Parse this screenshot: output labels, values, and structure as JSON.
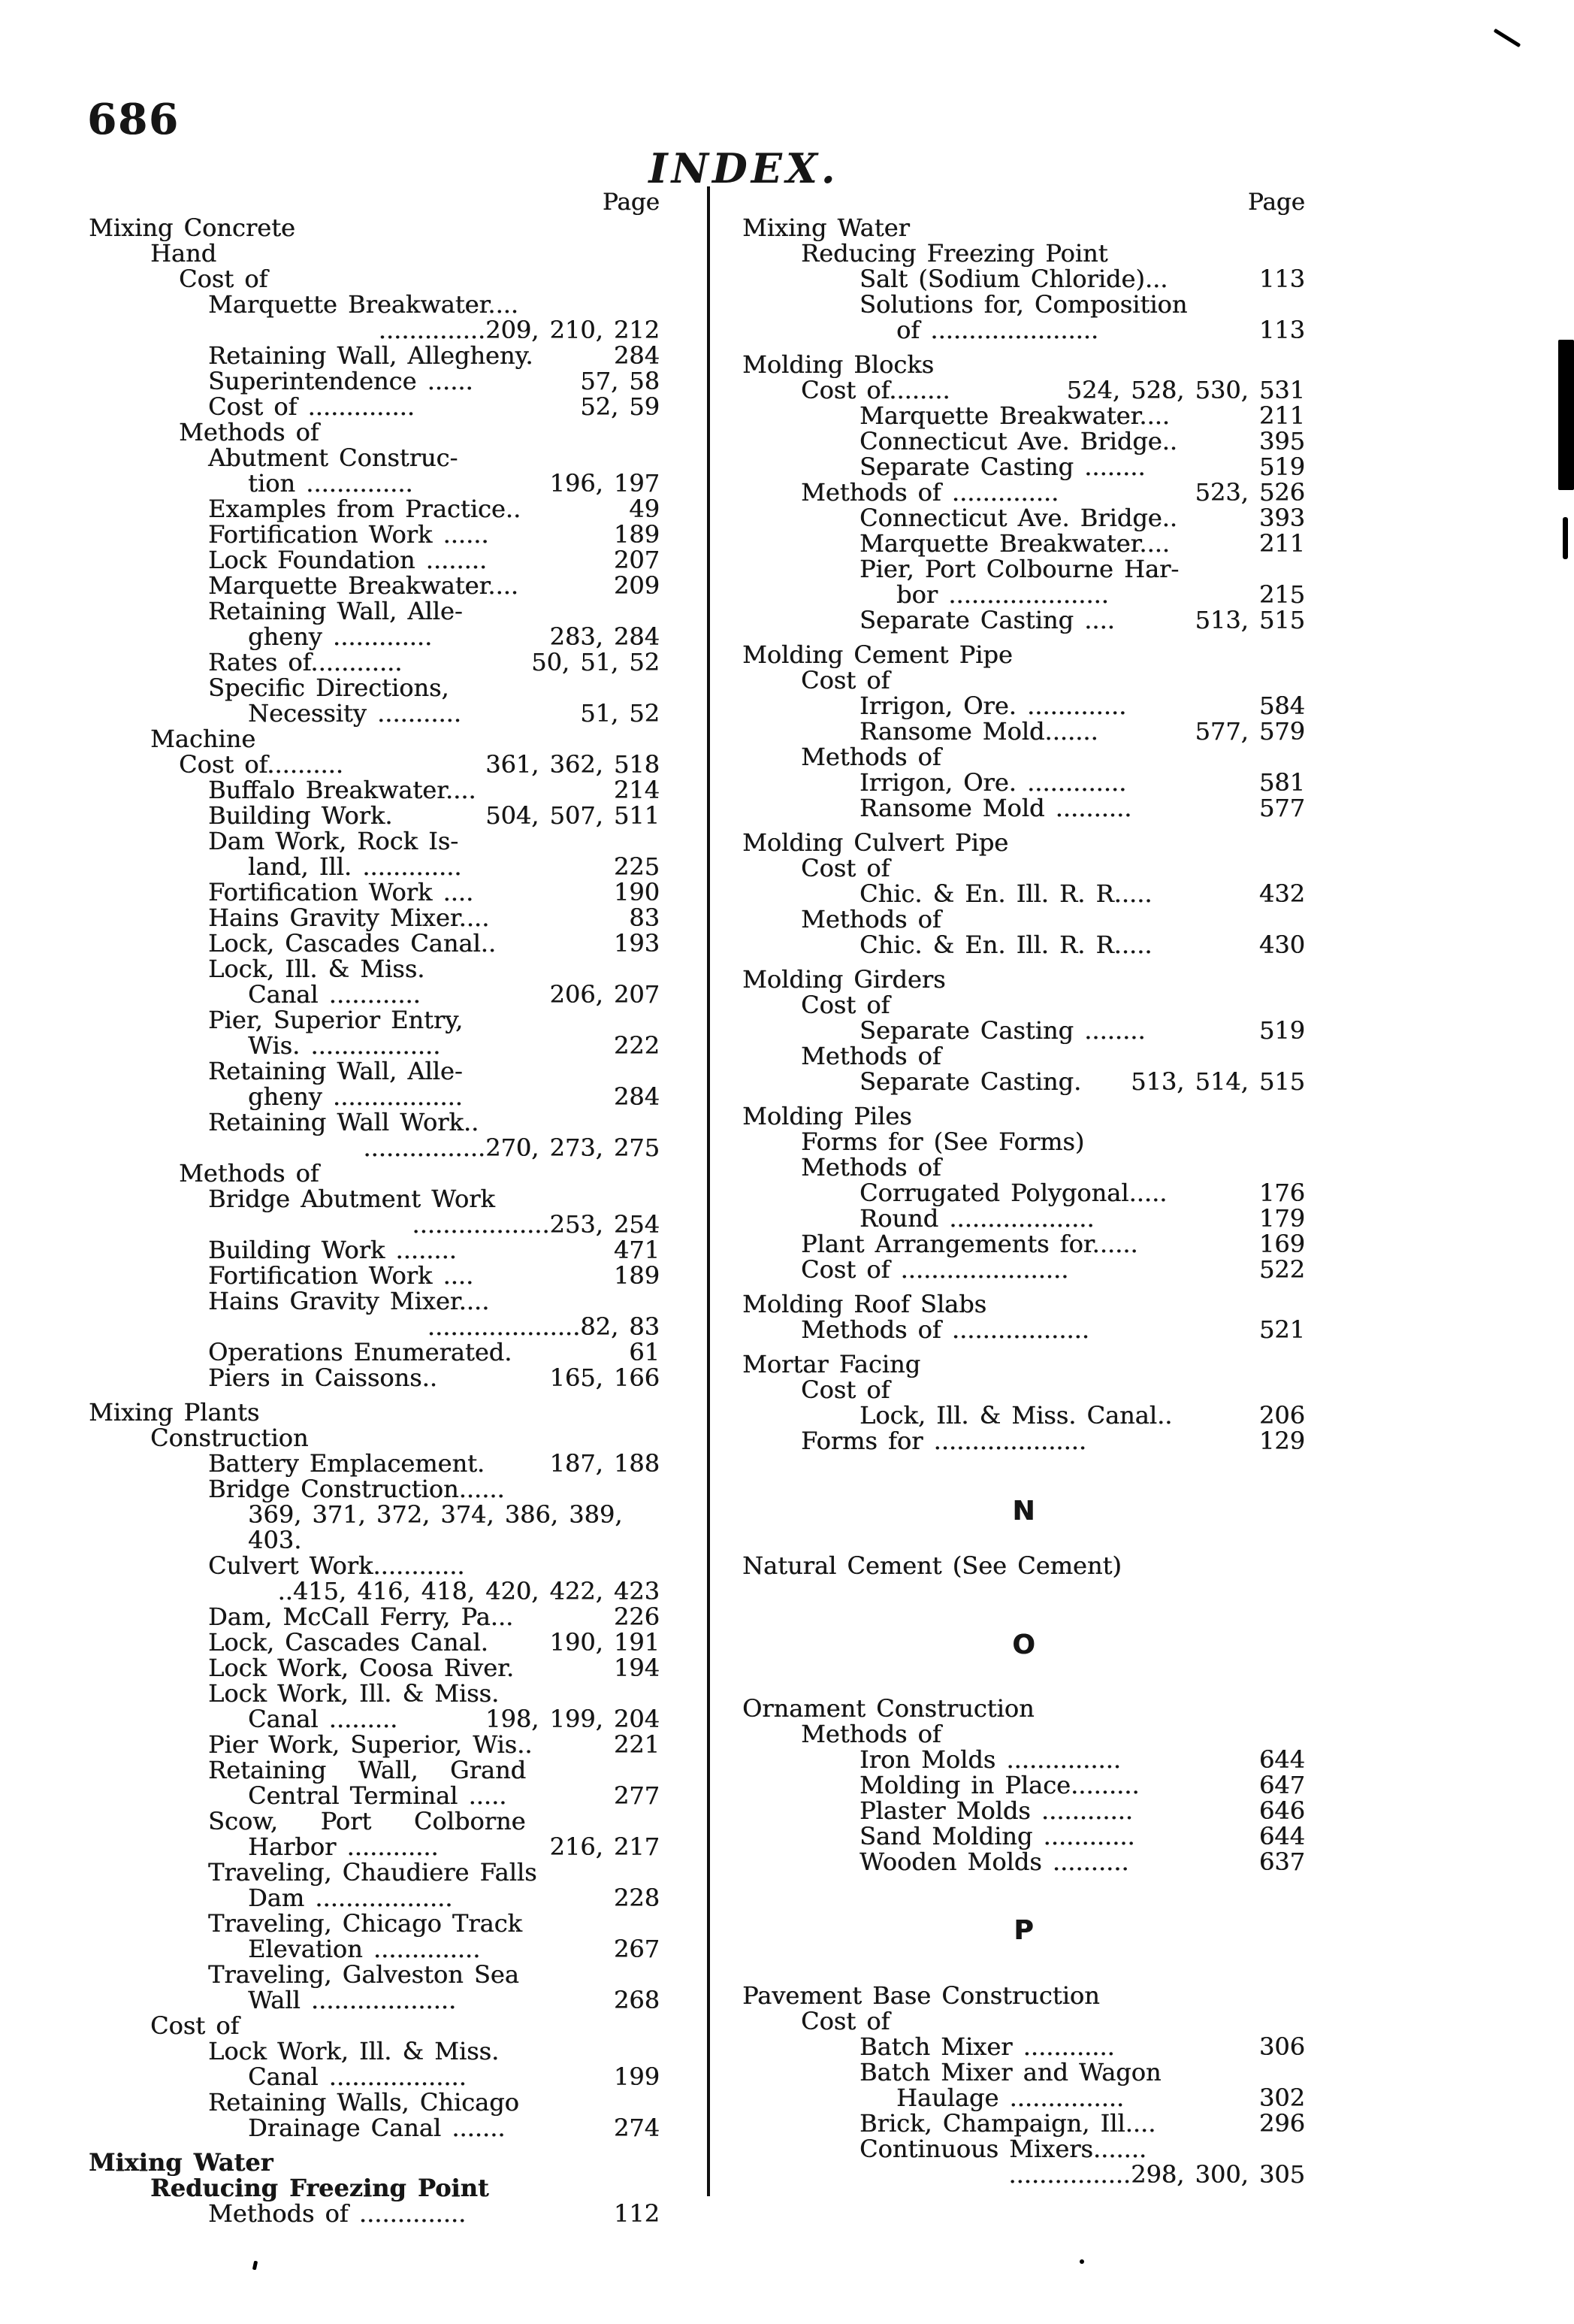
{
  "page": {
    "folio": "686",
    "title": "INDEX."
  },
  "colors": {
    "ink": "#161616",
    "paper": "#ffffff"
  },
  "left_column": {
    "page_label": "Page",
    "lines": [
      {
        "t": "Mixing Concrete",
        "l": 0
      },
      {
        "t": "Hand",
        "l": 1
      },
      {
        "t": "Cost of",
        "l": 2
      },
      {
        "t": "Marquette Breakwater....",
        "l": 3
      },
      {
        "n": "..............209, 210, 212",
        "l": 4
      },
      {
        "t": "Retaining Wall, Allegheny.",
        "n": "284",
        "l": 3
      },
      {
        "t": "Superintendence ......",
        "n": "57, 58",
        "l": 3
      },
      {
        "t": "Cost of ..............",
        "n": "52, 59",
        "l": 3
      },
      {
        "t": "Methods of",
        "l": 2
      },
      {
        "t": "Abutment Construc-",
        "l": 3
      },
      {
        "t": "tion ..............",
        "n": "196, 197",
        "l": 4
      },
      {
        "t": "Examples from Practice..",
        "n": "49",
        "l": 3
      },
      {
        "t": "Fortification Work ......",
        "n": "189",
        "l": 3
      },
      {
        "t": "Lock Foundation ........",
        "n": "207",
        "l": 3
      },
      {
        "t": "Marquette Breakwater....",
        "n": "209",
        "l": 3
      },
      {
        "t": "Retaining Wall, Alle-",
        "l": 3
      },
      {
        "t": "gheny .............",
        "n": "283, 284",
        "l": 4
      },
      {
        "t": "Rates of............",
        "n": "50, 51, 52",
        "l": 3
      },
      {
        "t": "Specific Directions,",
        "l": 3
      },
      {
        "t": "Necessity ...........",
        "n": "51, 52",
        "l": 4
      },
      {
        "t": "Machine",
        "l": 1
      },
      {
        "t": "Cost of..........",
        "n": "361, 362, 518",
        "l": 2
      },
      {
        "t": "Buffalo Breakwater....",
        "n": "214",
        "l": 3
      },
      {
        "t": "Building Work.",
        "n": "504, 507, 511",
        "l": 3
      },
      {
        "t": "Dam Work, Rock Is-",
        "l": 3
      },
      {
        "t": "land, Ill. .............",
        "n": "225",
        "l": 4
      },
      {
        "t": "Fortification Work ....",
        "n": "190",
        "l": 3
      },
      {
        "t": "Hains Gravity Mixer....",
        "n": "83",
        "l": 3
      },
      {
        "t": "Lock, Cascades Canal..",
        "n": "193",
        "l": 3
      },
      {
        "t": "Lock, Ill. & Miss.",
        "l": 3
      },
      {
        "t": "Canal ............",
        "n": "206, 207",
        "l": 4
      },
      {
        "t": "Pier, Superior Entry,",
        "l": 3
      },
      {
        "t": "Wis. .................",
        "n": "222",
        "l": 4
      },
      {
        "t": "Retaining Wall, Alle-",
        "l": 3
      },
      {
        "t": "gheny .................",
        "n": "284",
        "l": 4
      },
      {
        "t": "Retaining Wall Work..",
        "l": 3
      },
      {
        "n": "................270, 273, 275",
        "l": 4
      },
      {
        "t": "Methods of",
        "l": 2
      },
      {
        "t": "Bridge Abutment Work",
        "l": 3
      },
      {
        "n": "..................253, 254",
        "l": 4
      },
      {
        "t": "Building Work ........",
        "n": "471",
        "l": 3
      },
      {
        "t": "Fortification Work ....",
        "n": "189",
        "l": 3
      },
      {
        "t": "Hains Gravity Mixer....",
        "l": 3
      },
      {
        "n": "....................82, 83",
        "l": 4
      },
      {
        "t": "Operations Enumerated.",
        "n": "61",
        "l": 3
      },
      {
        "t": "Piers in Caissons..",
        "n": "165, 166",
        "l": 3
      },
      {
        "t": "Mixing Plants",
        "l": 0,
        "g": 12
      },
      {
        "t": "Construction",
        "l": 1
      },
      {
        "t": "Battery Emplacement.",
        "n": "187, 188",
        "l": 3
      },
      {
        "t": "Bridge Construction......",
        "l": 3
      },
      {
        "t": "369, 371, 372, 374, 386, 389,",
        "l": 4
      },
      {
        "t": "403.",
        "l": 4
      },
      {
        "t": "Culvert Work............",
        "l": 3
      },
      {
        "n": "..415, 416, 418, 420, 422, 423",
        "l": 4
      },
      {
        "t": "Dam, McCall Ferry, Pa...",
        "n": "226",
        "l": 3
      },
      {
        "t": "Lock, Cascades Canal.",
        "n": "190, 191",
        "l": 3
      },
      {
        "t": "Lock Work, Coosa River.",
        "n": "194",
        "l": 3
      },
      {
        "t": "Lock Work, Ill. & Miss.",
        "l": 3
      },
      {
        "t": "Canal .........",
        "n": "198, 199, 204",
        "l": 4
      },
      {
        "t": "Pier Work, Superior, Wis..",
        "n": "221",
        "l": 3
      },
      {
        "t": "Retaining   Wall,   Grand",
        "l": 3
      },
      {
        "t": "Central Terminal .....",
        "n": "277",
        "l": 4
      },
      {
        "t": "Scow,    Port    Colborne",
        "l": 3
      },
      {
        "t": "Harbor ............",
        "n": "216, 217",
        "l": 4
      },
      {
        "t": "Traveling, Chaudiere Falls",
        "l": 3
      },
      {
        "t": "Dam ..................",
        "n": "228",
        "l": 4
      },
      {
        "t": "Traveling, Chicago Track",
        "l": 3
      },
      {
        "t": "Elevation ..............",
        "n": "267",
        "l": 4
      },
      {
        "t": "Traveling, Galveston Sea",
        "l": 3
      },
      {
        "t": "Wall ...................",
        "n": "268",
        "l": 4
      },
      {
        "t": "Cost of",
        "l": 1
      },
      {
        "t": "Lock Work, Ill. & Miss.",
        "l": 3
      },
      {
        "t": "Canal ..................",
        "n": "199",
        "l": 4
      },
      {
        "t": "Retaining Walls, Chicago",
        "l": 3
      },
      {
        "t": "Drainage Canal .......",
        "n": "274",
        "l": 4
      },
      {
        "t": "Mixing Water",
        "l": 0,
        "b": 1,
        "g": 12
      },
      {
        "t": "Reducing Freezing Point",
        "l": 1,
        "b": 1
      },
      {
        "t": "Methods of ..............",
        "n": "112",
        "l": 3
      }
    ]
  },
  "right_column": {
    "page_label": "Page",
    "lines": [
      {
        "t": "Mixing Water",
        "l": 0
      },
      {
        "t": "Reducing Freezing Point",
        "l": 1
      },
      {
        "t": "Salt (Sodium Chloride)...",
        "n": "113",
        "l": 2
      },
      {
        "t": "Solutions for, Composition",
        "l": 2
      },
      {
        "t": "of ......................",
        "n": "113",
        "l": 3
      },
      {
        "t": "Molding Blocks",
        "l": 0,
        "g": 12
      },
      {
        "t": "Cost of........",
        "n": "524, 528, 530, 531",
        "l": 1
      },
      {
        "t": "Marquette Breakwater....",
        "n": "211",
        "l": 2
      },
      {
        "t": "Connecticut Ave. Bridge..",
        "n": "395",
        "l": 2
      },
      {
        "t": "Separate Casting ........",
        "n": "519",
        "l": 2
      },
      {
        "t": "Methods of ..............",
        "n": "523, 526",
        "l": 1
      },
      {
        "t": "Connecticut Ave. Bridge..",
        "n": "393",
        "l": 2
      },
      {
        "t": "Marquette Breakwater....",
        "n": "211",
        "l": 2
      },
      {
        "t": "Pier, Port Colbourne Har-",
        "l": 2
      },
      {
        "t": "bor .....................",
        "n": "215",
        "l": 3
      },
      {
        "t": "Separate Casting ....",
        "n": "513, 515",
        "l": 2
      },
      {
        "t": "Molding Cement Pipe",
        "l": 0,
        "g": 12
      },
      {
        "t": "Cost of",
        "l": 1
      },
      {
        "t": "Irrigon, Ore. .............",
        "n": "584",
        "l": 2
      },
      {
        "t": "Ransome Mold.......",
        "n": "577, 579",
        "l": 2
      },
      {
        "t": "Methods of",
        "l": 1
      },
      {
        "t": "Irrigon, Ore. .............",
        "n": "581",
        "l": 2
      },
      {
        "t": "Ransome Mold ..........",
        "n": "577",
        "l": 2
      },
      {
        "t": "Molding Culvert Pipe",
        "l": 0,
        "g": 12
      },
      {
        "t": "Cost of",
        "l": 1
      },
      {
        "t": "Chic. & En. Ill. R. R.....",
        "n": "432",
        "l": 2
      },
      {
        "t": "Methods of",
        "l": 1
      },
      {
        "t": "Chic. & En. Ill. R. R.....",
        "n": "430",
        "l": 2
      },
      {
        "t": "Molding Girders",
        "l": 0,
        "g": 12
      },
      {
        "t": "Cost of",
        "l": 1
      },
      {
        "t": "Separate Casting ........",
        "n": "519",
        "l": 2
      },
      {
        "t": "Methods of",
        "l": 1
      },
      {
        "t": "Separate Casting.",
        "n": "513, 514, 515",
        "l": 2
      },
      {
        "t": "Molding Piles",
        "l": 0,
        "g": 12
      },
      {
        "t": "Forms for (See Forms)",
        "l": 1
      },
      {
        "t": "Methods of",
        "l": 1
      },
      {
        "t": "Corrugated Polygonal.....",
        "n": "176",
        "l": 2
      },
      {
        "t": "Round ...................",
        "n": "179",
        "l": 2
      },
      {
        "t": "Plant Arrangements for......",
        "n": "169",
        "l": 1
      },
      {
        "t": "Cost of ......................",
        "n": "522",
        "l": 1
      },
      {
        "t": "Molding Roof Slabs",
        "l": 0,
        "g": 12
      },
      {
        "t": "Methods of ..................",
        "n": "521",
        "l": 1
      },
      {
        "t": "Mortar Facing",
        "l": 0,
        "g": 12
      },
      {
        "t": "Cost of",
        "l": 1
      },
      {
        "t": "Lock, Ill. & Miss. Canal..",
        "n": "206",
        "l": 2
      },
      {
        "t": "Forms for ....................",
        "n": "129",
        "l": 1
      },
      {
        "t": "N",
        "h": 1,
        "g": 60
      },
      {
        "t": "Natural Cement (See Cement)",
        "l": 0,
        "g": 38
      },
      {
        "t": "O",
        "h": 1,
        "g": 72
      },
      {
        "t": "Ornament Construction",
        "l": 0,
        "g": 50
      },
      {
        "t": "Methods of",
        "l": 1
      },
      {
        "t": "Iron Molds ...............",
        "n": "644",
        "l": 2
      },
      {
        "t": "Molding in Place.........",
        "n": "647",
        "l": 2
      },
      {
        "t": "Plaster Molds ............",
        "n": "646",
        "l": 2
      },
      {
        "t": "Sand Molding ............",
        "n": "644",
        "l": 2
      },
      {
        "t": "Wooden Molds ..........",
        "n": "637",
        "l": 2
      },
      {
        "t": "P",
        "h": 1,
        "g": 58
      },
      {
        "t": "Pavement Base Construction",
        "l": 0,
        "g": 52
      },
      {
        "t": "Cost of",
        "l": 1
      },
      {
        "t": "Batch Mixer ............",
        "n": "306",
        "l": 2
      },
      {
        "t": "Batch Mixer and Wagon",
        "l": 2
      },
      {
        "t": "Haulage ...............",
        "n": "302",
        "l": 3
      },
      {
        "t": "Brick, Champaign, Ill....",
        "n": "296",
        "l": 2
      },
      {
        "t": "Continuous Mixers.......",
        "l": 2
      },
      {
        "n": "................298, 300, 305",
        "l": 3
      }
    ]
  }
}
